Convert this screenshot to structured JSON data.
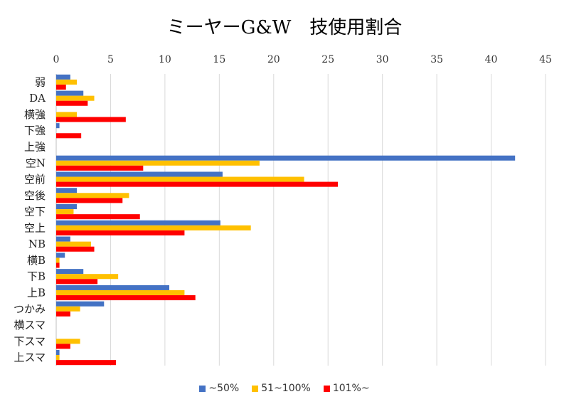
{
  "chart_data": {
    "type": "bar",
    "orientation": "horizontal",
    "title": "ミーヤーG&W　技使用割合",
    "xlabel": "",
    "ylabel": "",
    "xlim": [
      0,
      45
    ],
    "x_ticks": [
      0,
      5,
      10,
      15,
      20,
      25,
      30,
      35,
      40,
      45
    ],
    "x_axis_position": "top",
    "grid": true,
    "legend_position": "bottom",
    "categories": [
      "弱",
      "DA",
      "横強",
      "下強",
      "上強",
      "空N",
      "空前",
      "空後",
      "空下",
      "空上",
      "NB",
      "横B",
      "下B",
      "上B",
      "つかみ",
      "横スマ",
      "下スマ",
      "上スマ"
    ],
    "series": [
      {
        "name": "~50%",
        "color": "#4472C4",
        "values": [
          1.3,
          2.5,
          0,
          0.3,
          0,
          42.2,
          15.3,
          1.9,
          1.9,
          15.1,
          1.3,
          0.8,
          2.5,
          10.4,
          4.4,
          0,
          0,
          0.3
        ]
      },
      {
        "name": "51~100%",
        "color": "#FFC000",
        "values": [
          1.9,
          3.5,
          1.9,
          0,
          0,
          18.7,
          22.8,
          6.7,
          1.6,
          17.9,
          3.2,
          0.3,
          5.7,
          11.8,
          2.2,
          0,
          2.2,
          0.3
        ]
      },
      {
        "name": "101%~",
        "color": "#FF0000",
        "values": [
          0.9,
          2.9,
          6.4,
          2.3,
          0,
          8.0,
          25.9,
          6.1,
          7.7,
          11.8,
          3.5,
          0.3,
          3.8,
          12.8,
          1.3,
          0,
          1.3,
          5.5
        ]
      }
    ]
  }
}
